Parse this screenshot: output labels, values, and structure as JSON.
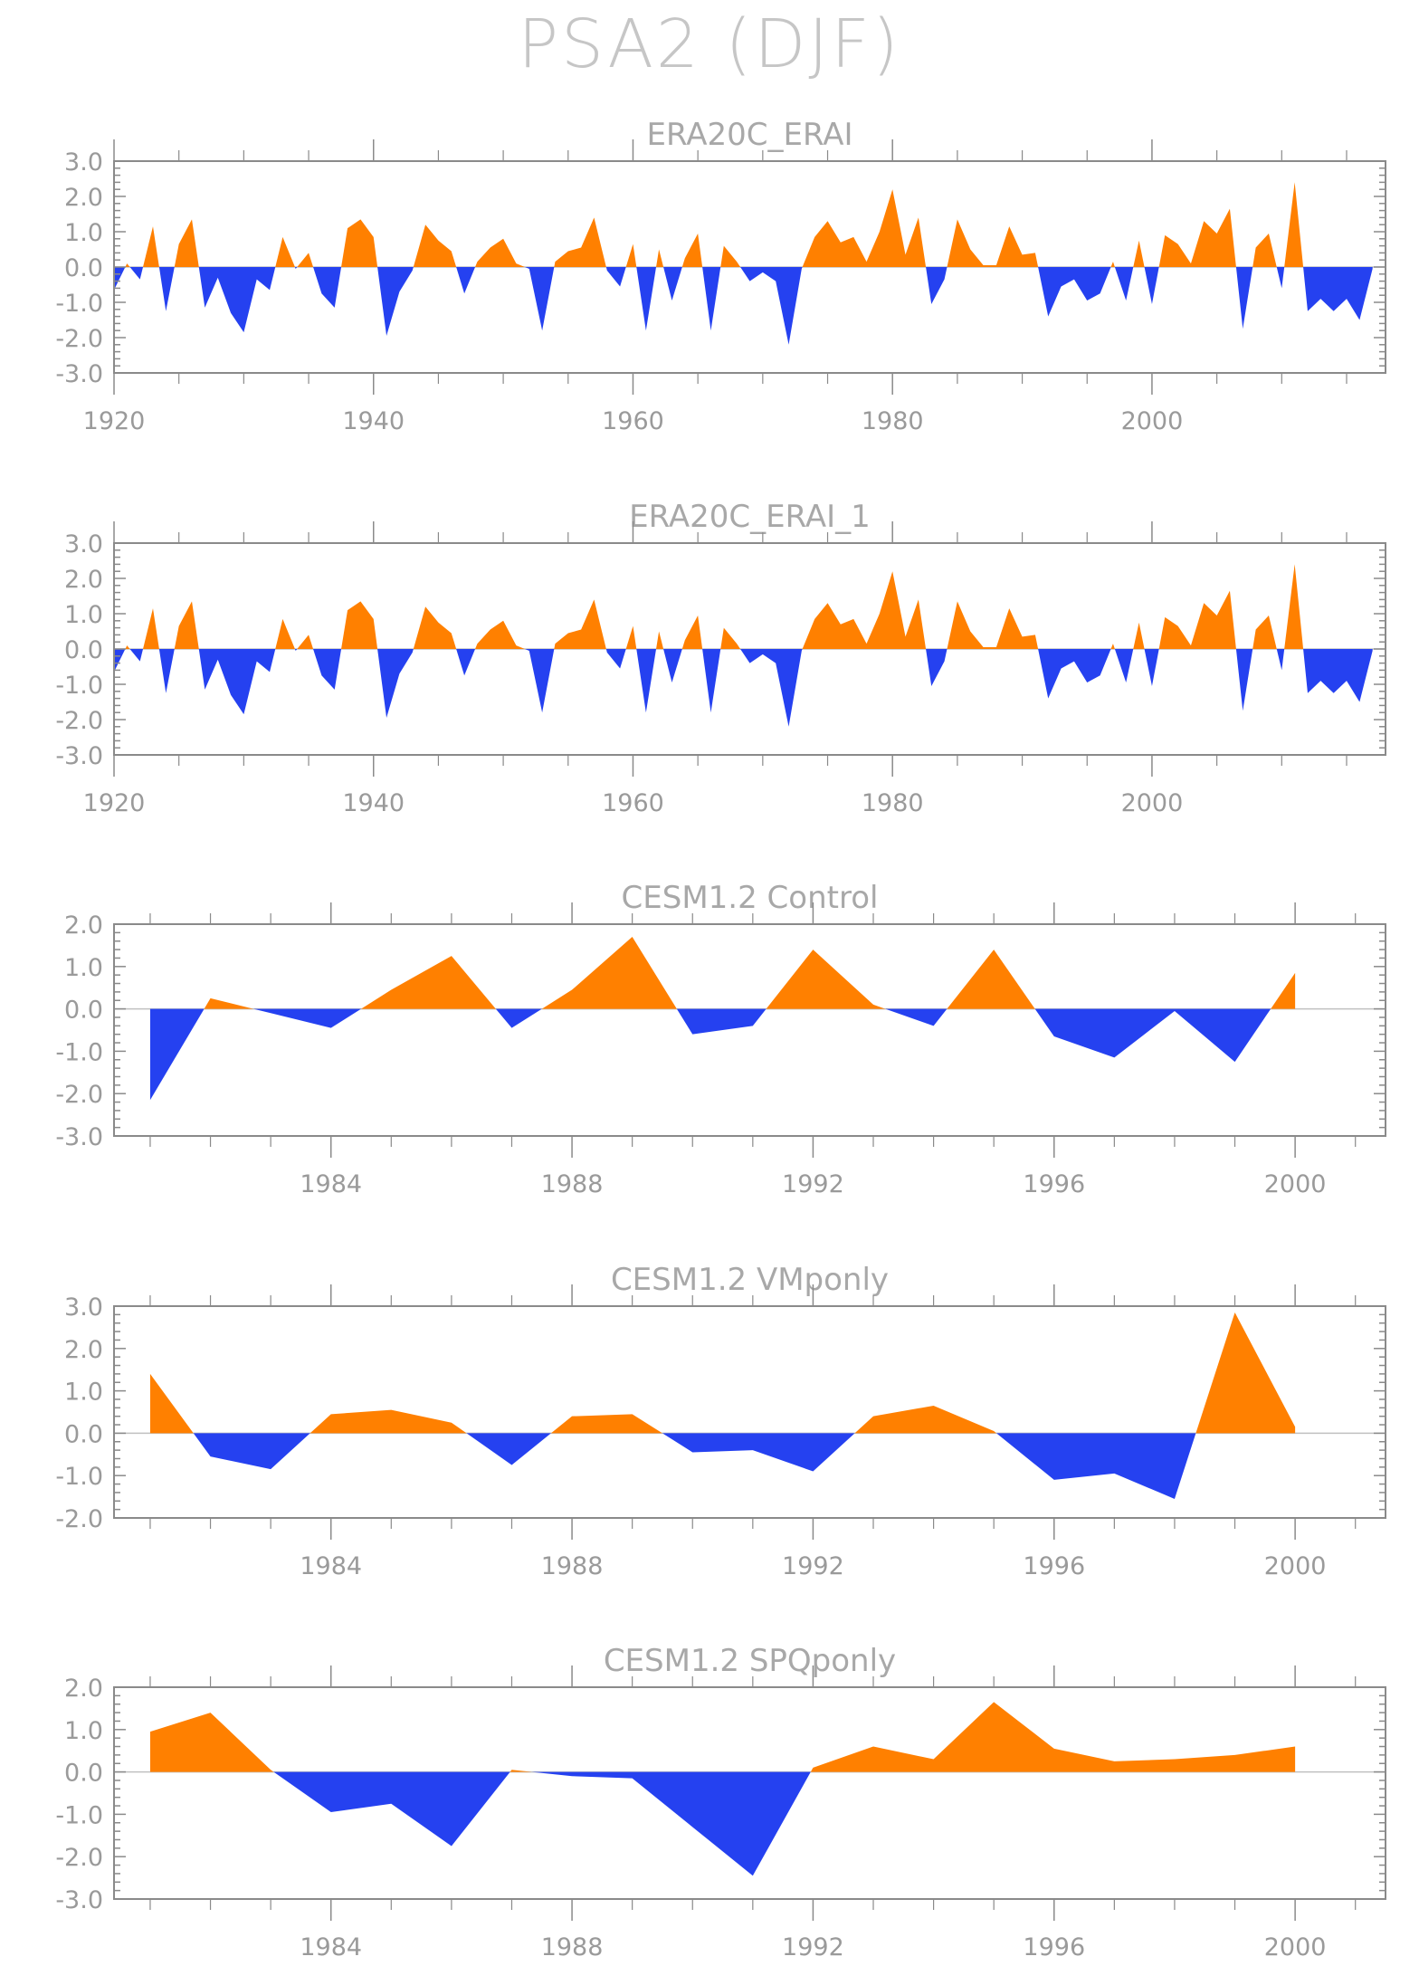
{
  "title": "PSA2 (DJF)",
  "colors": {
    "positive": "#ff8000",
    "negative": "#2541f0",
    "axis": "#8a8a8a",
    "text": "#9a9a9a",
    "zero_line": "#c0c0c0"
  },
  "chart_data": [
    {
      "type": "area",
      "title": "ERA20C_ERAI",
      "xlabel": "",
      "ylabel": "",
      "xlim": [
        1920,
        2018
      ],
      "ylim": [
        -3.0,
        3.0
      ],
      "x_ticks": [
        1920,
        1940,
        1960,
        1980,
        2000
      ],
      "y_ticks": [
        "-3.0",
        "-2.0",
        "-1.0",
        "0.0",
        "1.0",
        "2.0",
        "3.0"
      ],
      "x": [
        1920,
        1921,
        1922,
        1923,
        1924,
        1925,
        1926,
        1927,
        1928,
        1929,
        1930,
        1931,
        1932,
        1933,
        1934,
        1935,
        1936,
        1937,
        1938,
        1939,
        1940,
        1941,
        1942,
        1943,
        1944,
        1945,
        1946,
        1947,
        1948,
        1949,
        1950,
        1951,
        1952,
        1953,
        1954,
        1955,
        1956,
        1957,
        1958,
        1959,
        1960,
        1961,
        1962,
        1963,
        1964,
        1965,
        1966,
        1967,
        1968,
        1969,
        1970,
        1971,
        1972,
        1973,
        1974,
        1975,
        1976,
        1977,
        1978,
        1979,
        1980,
        1981,
        1982,
        1983,
        1984,
        1985,
        1986,
        1987,
        1988,
        1989,
        1990,
        1991,
        1992,
        1993,
        1994,
        1995,
        1996,
        1997,
        1998,
        1999,
        2000,
        2001,
        2002,
        2003,
        2004,
        2005,
        2006,
        2007,
        2008,
        2009,
        2010,
        2011,
        2012,
        2013,
        2014,
        2015,
        2016,
        2017
      ],
      "values": [
        -0.65,
        0.1,
        -0.35,
        1.15,
        -1.25,
        0.65,
        1.35,
        -1.15,
        -0.3,
        -1.3,
        -1.85,
        -0.35,
        -0.65,
        0.85,
        -0.05,
        0.4,
        -0.75,
        -1.15,
        1.1,
        1.35,
        0.85,
        -1.95,
        -0.7,
        -0.1,
        1.2,
        0.75,
        0.45,
        -0.75,
        0.15,
        0.55,
        0.8,
        0.1,
        -0.05,
        -1.8,
        0.15,
        0.45,
        0.55,
        1.4,
        -0.1,
        -0.55,
        0.65,
        -1.8,
        0.5,
        -0.95,
        0.25,
        0.95,
        -1.8,
        0.6,
        0.15,
        -0.4,
        -0.15,
        -0.4,
        -2.2,
        -0.05,
        0.85,
        1.3,
        0.7,
        0.85,
        0.15,
        1.0,
        2.2,
        0.35,
        1.4,
        -1.05,
        -0.35,
        1.35,
        0.5,
        0.05,
        0.05,
        1.15,
        0.35,
        0.4,
        -1.4,
        -0.55,
        -0.35,
        -0.95,
        -0.75,
        0.15,
        -0.95,
        0.75,
        -1.05,
        0.9,
        0.65,
        0.1,
        1.3,
        0.95,
        1.65,
        -1.75,
        0.55,
        0.95,
        -0.6,
        2.4,
        -1.25,
        -0.9,
        -1.25,
        -0.9,
        -1.5,
        -0.05
      ]
    },
    {
      "type": "area",
      "title": "ERA20C_ERAI_1",
      "xlabel": "",
      "ylabel": "",
      "xlim": [
        1920,
        2018
      ],
      "ylim": [
        -3.0,
        3.0
      ],
      "x_ticks": [
        1920,
        1940,
        1960,
        1980,
        2000
      ],
      "y_ticks": [
        "-3.0",
        "-2.0",
        "-1.0",
        "0.0",
        "1.0",
        "2.0",
        "3.0"
      ],
      "x": [
        1920,
        1921,
        1922,
        1923,
        1924,
        1925,
        1926,
        1927,
        1928,
        1929,
        1930,
        1931,
        1932,
        1933,
        1934,
        1935,
        1936,
        1937,
        1938,
        1939,
        1940,
        1941,
        1942,
        1943,
        1944,
        1945,
        1946,
        1947,
        1948,
        1949,
        1950,
        1951,
        1952,
        1953,
        1954,
        1955,
        1956,
        1957,
        1958,
        1959,
        1960,
        1961,
        1962,
        1963,
        1964,
        1965,
        1966,
        1967,
        1968,
        1969,
        1970,
        1971,
        1972,
        1973,
        1974,
        1975,
        1976,
        1977,
        1978,
        1979,
        1980,
        1981,
        1982,
        1983,
        1984,
        1985,
        1986,
        1987,
        1988,
        1989,
        1990,
        1991,
        1992,
        1993,
        1994,
        1995,
        1996,
        1997,
        1998,
        1999,
        2000,
        2001,
        2002,
        2003,
        2004,
        2005,
        2006,
        2007,
        2008,
        2009,
        2010,
        2011,
        2012,
        2013,
        2014,
        2015,
        2016,
        2017
      ],
      "values": [
        -0.65,
        0.1,
        -0.35,
        1.15,
        -1.25,
        0.65,
        1.35,
        -1.15,
        -0.3,
        -1.3,
        -1.85,
        -0.35,
        -0.65,
        0.85,
        -0.05,
        0.4,
        -0.75,
        -1.15,
        1.1,
        1.35,
        0.85,
        -1.95,
        -0.7,
        -0.1,
        1.2,
        0.75,
        0.45,
        -0.75,
        0.15,
        0.55,
        0.8,
        0.1,
        -0.05,
        -1.8,
        0.15,
        0.45,
        0.55,
        1.4,
        -0.1,
        -0.55,
        0.65,
        -1.8,
        0.5,
        -0.95,
        0.25,
        0.95,
        -1.8,
        0.6,
        0.15,
        -0.4,
        -0.15,
        -0.4,
        -2.2,
        -0.05,
        0.85,
        1.3,
        0.7,
        0.85,
        0.15,
        1.0,
        2.2,
        0.35,
        1.4,
        -1.05,
        -0.35,
        1.35,
        0.5,
        0.05,
        0.05,
        1.15,
        0.35,
        0.4,
        -1.4,
        -0.55,
        -0.35,
        -0.95,
        -0.75,
        0.15,
        -0.95,
        0.75,
        -1.05,
        0.9,
        0.65,
        0.1,
        1.3,
        0.95,
        1.65,
        -1.75,
        0.55,
        0.95,
        -0.6,
        2.4,
        -1.25,
        -0.9,
        -1.25,
        -0.9,
        -1.5,
        -0.05
      ]
    },
    {
      "type": "area",
      "title": "CESM1.2 Control",
      "xlabel": "",
      "ylabel": "",
      "xlim": [
        1980.4,
        2001.5
      ],
      "ylim": [
        -3.0,
        2.0
      ],
      "x_ticks": [
        1984,
        1988,
        1992,
        1996,
        2000
      ],
      "y_ticks": [
        "-3.0",
        "-2.0",
        "-1.0",
        "0.0",
        "1.0",
        "2.0"
      ],
      "x": [
        1981,
        1982,
        1983,
        1984,
        1985,
        1986,
        1987,
        1988,
        1989,
        1990,
        1991,
        1992,
        1993,
        1994,
        1995,
        1996,
        1997,
        1998,
        1999,
        2000
      ],
      "values": [
        -2.15,
        0.25,
        -0.1,
        -0.45,
        0.45,
        1.25,
        -0.45,
        0.45,
        1.7,
        -0.6,
        -0.4,
        1.4,
        0.1,
        -0.4,
        1.4,
        -0.65,
        -1.15,
        -0.05,
        -1.25,
        0.85
      ]
    },
    {
      "type": "area",
      "title": "CESM1.2 VMponly",
      "xlabel": "",
      "ylabel": "",
      "xlim": [
        1980.4,
        2001.5
      ],
      "ylim": [
        -2.0,
        3.0
      ],
      "x_ticks": [
        1984,
        1988,
        1992,
        1996,
        2000
      ],
      "y_ticks": [
        "-2.0",
        "-1.0",
        "0.0",
        "1.0",
        "2.0",
        "3.0"
      ],
      "x": [
        1981,
        1982,
        1983,
        1984,
        1985,
        1986,
        1987,
        1988,
        1989,
        1990,
        1991,
        1992,
        1993,
        1994,
        1995,
        1996,
        1997,
        1998,
        1999,
        2000
      ],
      "values": [
        1.4,
        -0.55,
        -0.85,
        0.45,
        0.55,
        0.25,
        -0.75,
        0.4,
        0.45,
        -0.45,
        -0.4,
        -0.9,
        0.4,
        0.65,
        0.05,
        -1.1,
        -0.95,
        -1.55,
        2.85,
        0.15
      ]
    },
    {
      "type": "area",
      "title": "CESM1.2 SPQponly",
      "xlabel": "",
      "ylabel": "",
      "xlim": [
        1980.4,
        2001.5
      ],
      "ylim": [
        -3.0,
        2.0
      ],
      "x_ticks": [
        1984,
        1988,
        1992,
        1996,
        2000
      ],
      "y_ticks": [
        "-3.0",
        "-2.0",
        "-1.0",
        "0.0",
        "1.0",
        "2.0"
      ],
      "x": [
        1981,
        1982,
        1983,
        1984,
        1985,
        1986,
        1987,
        1988,
        1989,
        1990,
        1991,
        1992,
        1993,
        1994,
        1995,
        1996,
        1997,
        1998,
        1999,
        2000
      ],
      "values": [
        0.95,
        1.4,
        0.05,
        -0.95,
        -0.75,
        -1.75,
        0.05,
        -0.1,
        -0.15,
        -1.3,
        -2.45,
        0.1,
        0.6,
        0.3,
        1.65,
        0.55,
        0.25,
        0.3,
        0.4,
        0.6
      ]
    }
  ]
}
